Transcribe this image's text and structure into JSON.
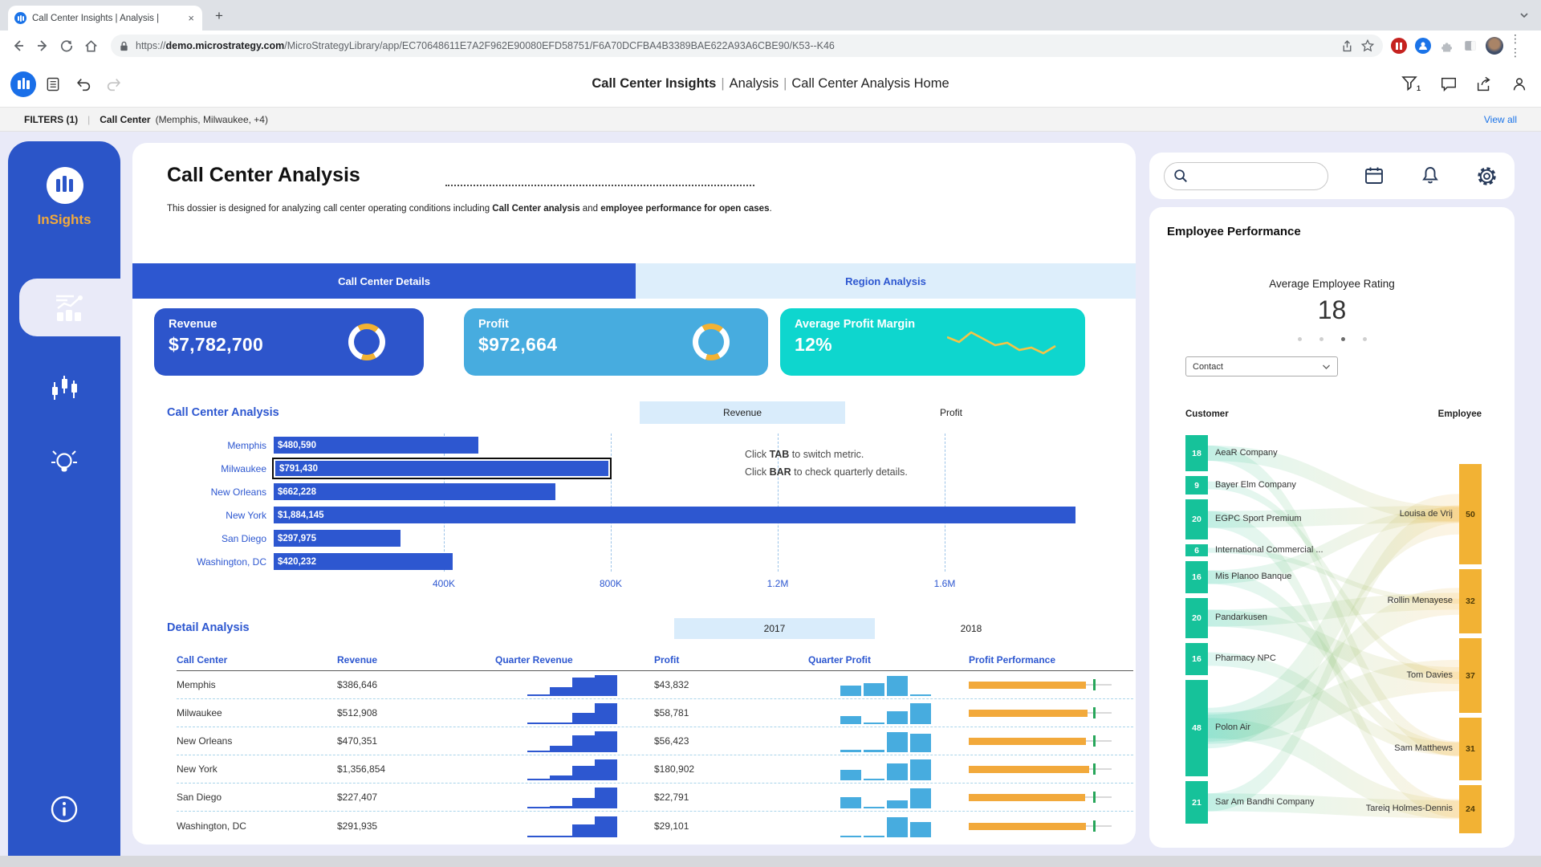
{
  "browser": {
    "tab": {
      "title": "Call Center Insights | Analysis |",
      "close": "×",
      "new_tab": "+"
    },
    "url": {
      "scheme": "https://",
      "domain": "demo.microstrategy.com",
      "path": "/MicroStrategyLibrary/app/EC70648611E7A2F962E90080EFD58751/F6A70DCFBA4B3389BAE622A93A6CBE90/K53--K46"
    }
  },
  "toolbar": {
    "title_parts": [
      "Call Center Insights",
      "Analysis",
      "Call Center Analysis Home"
    ]
  },
  "filters": {
    "label": "FILTERS (1)",
    "name": "Call Center",
    "values": "(Memphis, Milwaukee, +4)",
    "view_all": "View all"
  },
  "sidebar": {
    "brand": "InSights"
  },
  "main": {
    "title": "Call Center Analysis",
    "description": {
      "pre": "This dossier is designed for analyzing call center operating conditions including ",
      "bold1": "Call Center analysis",
      "mid": " and ",
      "bold2": "employee performance for open cases",
      "end": "."
    },
    "tabs": [
      {
        "label": "Call Center Details",
        "active": true
      },
      {
        "label": "Region Analysis",
        "active": false
      }
    ],
    "kpis": [
      {
        "label": "Revenue",
        "value": "$7,782,700",
        "color": "#2d55cb",
        "viz": "donut"
      },
      {
        "label": "Profit",
        "value": "$972,664",
        "color": "#47acdf",
        "viz": "donut"
      },
      {
        "label": "Average Profit Margin",
        "value": "12%",
        "color": "#0ed6ce",
        "viz": "sparkline",
        "sparkline": [
          16,
          22,
          10,
          18,
          26,
          23,
          32,
          29,
          36,
          27
        ]
      }
    ],
    "bar_chart": {
      "title": "Call Center Analysis",
      "metric_toggle": [
        "Revenue",
        "Profit"
      ],
      "active_metric": "Revenue",
      "axis_ticks": [
        "400K",
        "800K",
        "1.2M",
        "1.6M"
      ],
      "instructions": [
        {
          "pre": "Click ",
          "key": "TAB",
          "post": " to switch metric."
        },
        {
          "pre": "Click ",
          "key": "BAR",
          "post": " to check quarterly details."
        }
      ],
      "categories": [
        {
          "name": "Memphis",
          "label": "$480,590",
          "value": 480590,
          "selected": false
        },
        {
          "name": "Milwaukee",
          "label": "$791,430",
          "value": 791430,
          "selected": true
        },
        {
          "name": "New Orleans",
          "label": "$662,228",
          "value": 662228,
          "selected": false
        },
        {
          "name": "New York",
          "label": "$1,884,145",
          "value": 1884145,
          "selected": false
        },
        {
          "name": "San Diego",
          "label": "$297,975",
          "value": 297975,
          "selected": false
        },
        {
          "name": "Washington, DC",
          "label": "$420,232",
          "value": 420232,
          "selected": false
        }
      ]
    },
    "table": {
      "title": "Detail Analysis",
      "year_toggle": [
        "2017",
        "2018"
      ],
      "active_year": "2017",
      "columns": [
        "Call Center",
        "Revenue",
        "Quarter Revenue",
        "Profit",
        "Quarter Profit",
        "Profit Performance"
      ],
      "rows": [
        {
          "call_center": "Memphis",
          "revenue": "$386,646",
          "quarter_revenue": [
            0.06,
            0.42,
            0.88,
            1
          ],
          "profit": "$43,832",
          "quarter_profit": [
            0.5,
            0.62,
            0.95,
            0.07
          ],
          "profit_performance": 0.86
        },
        {
          "call_center": "Milwaukee",
          "revenue": "$512,908",
          "quarter_revenue": [
            0.05,
            0.07,
            0.55,
            1
          ],
          "profit": "$58,781",
          "quarter_profit": [
            0.4,
            0.07,
            0.6,
            1
          ],
          "profit_performance": 0.87
        },
        {
          "call_center": "New Orleans",
          "revenue": "$470,351",
          "quarter_revenue": [
            0.06,
            0.3,
            0.8,
            1
          ],
          "profit": "$56,423",
          "quarter_profit": [
            0.12,
            0.1,
            0.95,
            0.88
          ],
          "profit_performance": 0.86
        },
        {
          "call_center": "New York",
          "revenue": "$1,356,854",
          "quarter_revenue": [
            0.05,
            0.22,
            0.68,
            1
          ],
          "profit": "$180,902",
          "quarter_profit": [
            0.5,
            0.08,
            0.8,
            1
          ],
          "profit_performance": 0.88
        },
        {
          "call_center": "San Diego",
          "revenue": "$227,407",
          "quarter_revenue": [
            0.05,
            0.12,
            0.5,
            1
          ],
          "profit": "$22,791",
          "quarter_profit": [
            0.55,
            0.06,
            0.38,
            0.95
          ],
          "profit_performance": 0.85
        },
        {
          "call_center": "Washington, DC",
          "revenue": "$291,935",
          "quarter_revenue": [
            0.04,
            0.06,
            0.6,
            1
          ],
          "profit": "$29,101",
          "quarter_profit": [
            0.07,
            0.07,
            0.95,
            0.72
          ],
          "profit_performance": 0.86
        }
      ]
    }
  },
  "right_panel": {
    "search": {
      "placeholder": ""
    },
    "icons": [
      "search-icon",
      "calendar-icon",
      "bell-icon",
      "gear-icon"
    ],
    "employee_performance": {
      "heading": "Employee Performance",
      "rating_label": "Average Employee Rating",
      "rating_value": "18",
      "pagination": {
        "count": 4,
        "active_index": 2
      },
      "dropdown_value": "Contact",
      "left_column_label": "Customer",
      "right_column_label": "Employee",
      "customers": [
        {
          "name": "AeaR Company",
          "value": 18
        },
        {
          "name": "Bayer Elm Company",
          "value": 9
        },
        {
          "name": "EGPC Sport Premium",
          "value": 20
        },
        {
          "name": "International Commercial ...",
          "value": 6
        },
        {
          "name": "Mis Planoo Banque",
          "value": 16
        },
        {
          "name": "Pandarkusen",
          "value": 20
        },
        {
          "name": "Pharmacy NPC",
          "value": 16
        },
        {
          "name": "Polon Air",
          "value": 48
        },
        {
          "name": "Sar Am Bandhi Company",
          "value": 21
        }
      ],
      "employees": [
        {
          "name": "Louisa de Vrij",
          "value": 50
        },
        {
          "name": "Rollin Menayese",
          "value": 32
        },
        {
          "name": "Tom Davies",
          "value": 37
        },
        {
          "name": "Sam Matthews",
          "value": 31
        },
        {
          "name": "Tareiq Holmes-Dennis",
          "value": 24
        }
      ]
    }
  },
  "colors": {
    "accent_blue": "#2d57d0",
    "sidebar_blue": "#2b55c8",
    "kpi_revenue": "#2d55cb",
    "kpi_profit": "#47acdf",
    "kpi_margin": "#0ed6ce",
    "donut_arc": "#f2b233",
    "toggle_highlight": "#d9ecfb",
    "mini_revenue": "#2d57d0",
    "mini_profit": "#47acdf",
    "perf_orange": "#f2a93b",
    "perf_target_green": "#27a65a",
    "sankey_customer": "#16c29a",
    "sankey_employee": "#f2b234",
    "brand_orange": "#f2a93b",
    "link_blue": "#1a73e8"
  }
}
